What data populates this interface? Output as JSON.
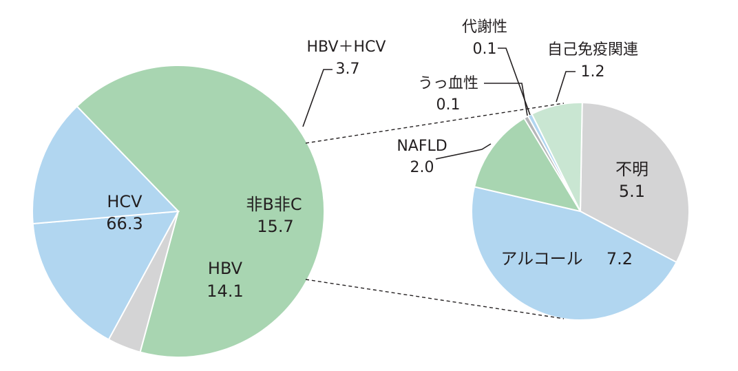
{
  "chart_data": [
    {
      "type": "pie",
      "title": "",
      "categories": [
        "HCV",
        "HBV＋HCV",
        "非B非C",
        "HBV"
      ],
      "values": [
        66.3,
        3.7,
        15.7,
        14.1
      ],
      "labels": [
        {
          "name": "HCV",
          "value": "66.3"
        },
        {
          "name": "HBV＋HCV",
          "value": "3.7"
        },
        {
          "name": "非B非C",
          "value": "15.7"
        },
        {
          "name": "HBV",
          "value": "14.1"
        }
      ],
      "colors": [
        "#a8d5b1",
        "#d4d4d5",
        "#b1d6f0",
        "#b1d6f0"
      ]
    },
    {
      "type": "pie",
      "title": "",
      "categories": [
        "不明",
        "アルコール",
        "NAFLD",
        "うっ血性",
        "代謝性",
        "自己免疫関連"
      ],
      "values": [
        5.1,
        7.2,
        2.0,
        0.1,
        0.1,
        1.2
      ],
      "labels": [
        {
          "name": "不明",
          "value": "5.1"
        },
        {
          "name": "アルコール",
          "value": "7.2"
        },
        {
          "name": "NAFLD",
          "value": "2.0"
        },
        {
          "name": "うっ血性",
          "value": "0.1"
        },
        {
          "name": "代謝性",
          "value": "0.1"
        },
        {
          "name": "自己免疫関連",
          "value": "1.2"
        }
      ],
      "colors": [
        "#d4d4d5",
        "#b1d6f0",
        "#a8d5b1",
        "#b5b6b8",
        "#b1d6f0",
        "#c9e6d2"
      ]
    }
  ]
}
